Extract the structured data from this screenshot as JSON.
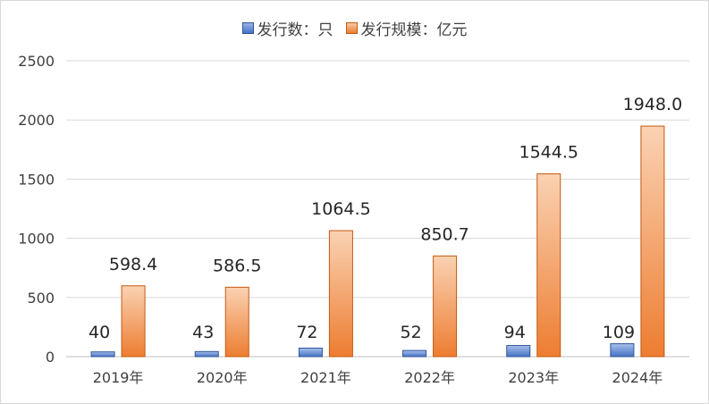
{
  "chart_data": {
    "type": "bar",
    "categories": [
      "2019年",
      "2020年",
      "2021年",
      "2022年",
      "2023年",
      "2024年"
    ],
    "series": [
      {
        "name": "发行数：只",
        "values": [
          40,
          43,
          72,
          52,
          94,
          109
        ],
        "labels": [
          "40",
          "43",
          "72",
          "52",
          "94",
          "109"
        ],
        "color": "#4472c4"
      },
      {
        "name": "发行规模：亿元",
        "values": [
          598.4,
          586.5,
          1064.5,
          850.7,
          1544.5,
          1948.0
        ],
        "labels": [
          "598.4",
          "586.5",
          "1064.5",
          "850.7",
          "1544.5",
          "1948.0"
        ],
        "color": "#ed7d31"
      }
    ],
    "yticks": [
      "0",
      "500",
      "1000",
      "1500",
      "2000",
      "2500"
    ],
    "ylim": [
      0,
      2500
    ],
    "grid": true,
    "legend": "top-center"
  }
}
